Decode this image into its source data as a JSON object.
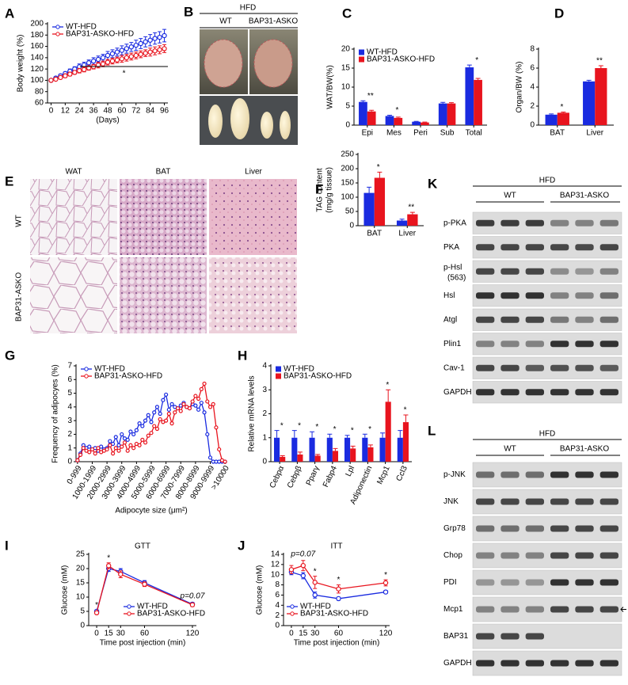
{
  "chart_data": [
    {
      "panel": "A",
      "type": "line",
      "ylabel": "Body weight (%)",
      "xlabel": "(Days)",
      "legend": "upper left",
      "annotation": "*",
      "x": [
        0,
        4,
        8,
        12,
        16,
        20,
        24,
        28,
        32,
        36,
        40,
        44,
        48,
        52,
        56,
        60,
        64,
        68,
        72,
        76,
        80,
        84,
        88,
        92,
        96
      ],
      "xlim": [
        -3,
        99
      ],
      "xticks": [
        0,
        12,
        24,
        36,
        48,
        60,
        72,
        84,
        96
      ],
      "ylim": [
        60,
        200
      ],
      "yticks": [
        60,
        80,
        100,
        120,
        140,
        160,
        180,
        200
      ],
      "series": [
        {
          "name": "WT-HFD",
          "color": "#1a2be0",
          "values": [
            100,
            104,
            108,
            112,
            116,
            120,
            124,
            127,
            131,
            134,
            137,
            140,
            144,
            147,
            150,
            153,
            156,
            159,
            162,
            165,
            168,
            171,
            174,
            176,
            179
          ],
          "errors": [
            1,
            2,
            3,
            3,
            4,
            4,
            5,
            5,
            5,
            6,
            6,
            6,
            7,
            7,
            7,
            8,
            8,
            8,
            9,
            9,
            9,
            10,
            10,
            10,
            11
          ]
        },
        {
          "name": "BAP31-ASKO-HFD",
          "color": "#e8141e",
          "values": [
            100,
            102,
            105,
            108,
            111,
            114,
            117,
            119,
            122,
            124,
            127,
            129,
            132,
            134,
            136,
            138,
            140,
            142,
            144,
            146,
            148,
            150,
            152,
            154,
            156
          ],
          "errors": [
            1,
            2,
            2,
            3,
            3,
            3,
            4,
            4,
            4,
            4,
            5,
            5,
            5,
            5,
            5,
            6,
            6,
            6,
            6,
            6,
            6,
            7,
            7,
            7,
            7
          ]
        }
      ]
    },
    {
      "panel": "C",
      "type": "bar",
      "ylabel": "WAT/BW(%)",
      "legend": "upper left",
      "categories": [
        "Epi",
        "Mes",
        "Peri",
        "Sub",
        "Total"
      ],
      "ylim": [
        0,
        20
      ],
      "yticks": [
        0,
        5,
        10,
        15,
        20
      ],
      "series": [
        {
          "name": "WT-HFD",
          "color": "#1a2be0",
          "values": [
            6.1,
            2.4,
            0.9,
            5.7,
            15.2
          ],
          "errors": [
            0.3,
            0.2,
            0.1,
            0.3,
            0.6
          ]
        },
        {
          "name": "BAP31-ASKO-HFD",
          "color": "#e8141e",
          "values": [
            3.6,
            1.9,
            0.7,
            5.7,
            11.9
          ],
          "errors": [
            0.3,
            0.2,
            0.1,
            0.2,
            0.4
          ],
          "significance": [
            "**",
            "*",
            null,
            null,
            "*"
          ]
        }
      ]
    },
    {
      "panel": "D",
      "type": "bar",
      "ylabel": "Organ/BW (%)",
      "categories": [
        "BAT",
        "Liver"
      ],
      "ylim": [
        0,
        8
      ],
      "yticks": [
        0,
        2,
        4,
        6,
        8
      ],
      "series": [
        {
          "color": "#1a2be0",
          "values": [
            1.1,
            4.6
          ],
          "errors": [
            0.08,
            0.12
          ]
        },
        {
          "color": "#e8141e",
          "values": [
            1.3,
            6.0
          ],
          "errors": [
            0.08,
            0.25
          ],
          "significance": [
            "*",
            "**"
          ]
        }
      ]
    },
    {
      "panel": "F",
      "type": "bar",
      "ylabel": [
        "TAG content",
        "(mg/g tissue)"
      ],
      "categories": [
        "BAT",
        "Liver"
      ],
      "ylim": [
        0,
        250
      ],
      "yticks": [
        0,
        50,
        100,
        150,
        200,
        250
      ],
      "series": [
        {
          "color": "#1a2be0",
          "values": [
            115,
            18
          ],
          "errors": [
            20,
            5
          ]
        },
        {
          "color": "#e8141e",
          "values": [
            168,
            40
          ],
          "errors": [
            20,
            7
          ],
          "significance": [
            "*",
            "**"
          ]
        }
      ]
    },
    {
      "panel": "G",
      "type": "line",
      "ylabel": "Frequency of adipocyes (%)",
      "xlabel": "Adipocyte size (μm²)",
      "legend": "upper left",
      "categories": [
        "0-999",
        null,
        null,
        null,
        null,
        "1000-1999",
        null,
        null,
        null,
        null,
        "2000-2999",
        null,
        null,
        null,
        null,
        "3000-3999",
        null,
        null,
        null,
        null,
        "4000-4999",
        null,
        null,
        null,
        null,
        "5000-5999",
        null,
        null,
        null,
        null,
        "6000-6999",
        null,
        null,
        null,
        null,
        "7000-7999",
        null,
        null,
        null,
        null,
        "8000-8999",
        null,
        null,
        null,
        null,
        "9000-9999",
        null,
        null,
        null,
        null,
        ">10000"
      ],
      "ylim": [
        0,
        7
      ],
      "yticks": [
        0,
        1,
        2,
        3,
        4,
        5,
        6,
        7
      ],
      "series": [
        {
          "name": "WT-HFD",
          "color": "#1a2be0",
          "values": [
            0.1,
            0.6,
            1.2,
            1.0,
            1.1,
            0.9,
            1.0,
            0.8,
            1.1,
            0.9,
            1.0,
            1.5,
            1.3,
            1.8,
            1.2,
            2.0,
            1.7,
            1.6,
            2.2,
            2.0,
            2.3,
            2.8,
            2.6,
            3.0,
            3.4,
            2.9,
            3.6,
            4.0,
            3.5,
            4.5,
            4.9,
            3.8,
            4.2,
            4.0,
            3.9,
            4.1,
            4.3,
            4.0,
            3.9,
            4.2,
            4.1,
            3.8,
            4.3,
            3.6,
            2.0,
            0.3,
            0.0,
            0.0,
            0.0,
            0.0,
            0.0
          ]
        },
        {
          "name": "BAP31-ASKO-HFD",
          "color": "#e8141e",
          "values": [
            0.1,
            0.5,
            1.0,
            0.8,
            0.7,
            0.9,
            0.6,
            1.0,
            0.7,
            0.8,
            0.9,
            1.2,
            0.6,
            1.0,
            0.8,
            1.1,
            1.4,
            0.8,
            1.2,
            1.0,
            1.3,
            1.2,
            1.6,
            1.4,
            1.9,
            2.1,
            2.6,
            2.4,
            3.1,
            2.9,
            3.0,
            3.5,
            2.8,
            3.6,
            3.9,
            3.7,
            4.2,
            4.0,
            3.9,
            4.4,
            4.8,
            4.6,
            5.3,
            5.7,
            4.4,
            4.0,
            4.2,
            2.5,
            0.9,
            0.1,
            0.0
          ]
        }
      ]
    },
    {
      "panel": "H",
      "type": "bar",
      "ylabel": "Relative mRNA levels",
      "legend": "upper left",
      "categories": [
        "Cebpα",
        "Cebpβ",
        "Pparγ",
        "Fabp4",
        "Lpl",
        "Adiponectin",
        "Mcp1",
        "Ccl3"
      ],
      "ylim": [
        0,
        4
      ],
      "yticks": [
        0,
        1,
        2,
        3,
        4
      ],
      "series": [
        {
          "name": "WT-HFD",
          "color": "#1a2be0",
          "values": [
            1,
            1,
            1,
            1,
            1,
            1,
            1,
            1
          ],
          "errors": [
            0.3,
            0.3,
            0.25,
            0.15,
            0.1,
            0.15,
            0.2,
            0.3
          ]
        },
        {
          "name": "BAP31-ASKO-HFD",
          "color": "#e8141e",
          "values": [
            0.2,
            0.3,
            0.25,
            0.45,
            0.55,
            0.6,
            2.5,
            1.65
          ],
          "errors": [
            0.05,
            0.1,
            0.05,
            0.1,
            0.1,
            0.1,
            0.5,
            0.3
          ],
          "significance": [
            "*",
            "*",
            "*",
            "*",
            "*",
            "*",
            "*",
            "*"
          ]
        }
      ]
    },
    {
      "panel": "I",
      "type": "line",
      "title": "GTT",
      "ylabel": "Glucose (mM)",
      "xlabel": "Time post injection (min)",
      "legend": "lower right",
      "x": [
        0,
        15,
        30,
        60,
        120
      ],
      "xlim": [
        -10,
        125
      ],
      "xticks": [
        0,
        15,
        30,
        60,
        120
      ],
      "ylim": [
        0,
        25
      ],
      "yticks": [
        0,
        5,
        10,
        15,
        20,
        25
      ],
      "series": [
        {
          "name": "WT-HFD",
          "color": "#1a2be0",
          "values": [
            5,
            20,
            19,
            15,
            7.5
          ],
          "errors": [
            0.5,
            1,
            1,
            0.8,
            0.6
          ]
        },
        {
          "name": "BAP31-ASKO-HFD",
          "color": "#e8141e",
          "values": [
            4.5,
            21,
            18,
            14.5,
            7.3
          ],
          "errors": [
            0.4,
            1,
            1.2,
            0.8,
            0.6
          ],
          "significance": [
            "*",
            "*",
            null,
            null,
            "p=0.07"
          ]
        }
      ]
    },
    {
      "panel": "J",
      "type": "line",
      "title": "ITT",
      "ylabel": "Glucose (mM)",
      "xlabel": "Time post injection (min)",
      "legend": "lower left",
      "x": [
        0,
        15,
        30,
        60,
        120
      ],
      "xlim": [
        -10,
        125
      ],
      "xticks": [
        0,
        15,
        30,
        60,
        120
      ],
      "ylim": [
        0,
        14
      ],
      "yticks": [
        0,
        2,
        4,
        6,
        8,
        10,
        12,
        14
      ],
      "series": [
        {
          "name": "WT-HFD",
          "color": "#1a2be0",
          "values": [
            10.5,
            9.8,
            6.0,
            5.3,
            6.6
          ],
          "errors": [
            0.5,
            0.6,
            0.6,
            0.3,
            0.3
          ]
        },
        {
          "name": "BAP31-ASKO-HFD",
          "color": "#e8141e",
          "values": [
            11.0,
            11.8,
            8.5,
            7.2,
            8.4
          ],
          "errors": [
            0.8,
            1.0,
            1.2,
            0.8,
            0.6
          ],
          "significance": [
            null,
            "p=0.07",
            "*",
            "*",
            "*"
          ]
        }
      ]
    }
  ],
  "figure_b": {
    "panel": "B",
    "header": "HFD",
    "groups": [
      "WT",
      "BAP31-ASKO"
    ]
  },
  "figure_e": {
    "panel": "E",
    "columns": [
      "WAT",
      "BAT",
      "Liver"
    ],
    "rows": [
      "WT",
      "BAP31-ASKO"
    ]
  },
  "blot_k": {
    "panel": "K",
    "header": "HFD",
    "groups": [
      "WT",
      "BAP31-ASKO"
    ],
    "rows": [
      "p-PKA",
      "PKA",
      "p-Hsl",
      "Hsl",
      "Atgl",
      "Plin1",
      "Cav-1",
      "GAPDH"
    ],
    "sublabels": [
      null,
      null,
      "(563)",
      null,
      null,
      null,
      null,
      null
    ]
  },
  "blot_l": {
    "panel": "L",
    "header": "HFD",
    "groups": [
      "WT",
      "BAP31-ASKO"
    ],
    "rows": [
      "p-JNK",
      "JNK",
      "Grp78",
      "Chop",
      "PDI",
      "Mcp1",
      "BAP31",
      "GAPDH"
    ],
    "sublabels": [
      null,
      null,
      null,
      null,
      null,
      null,
      null,
      null
    ]
  }
}
